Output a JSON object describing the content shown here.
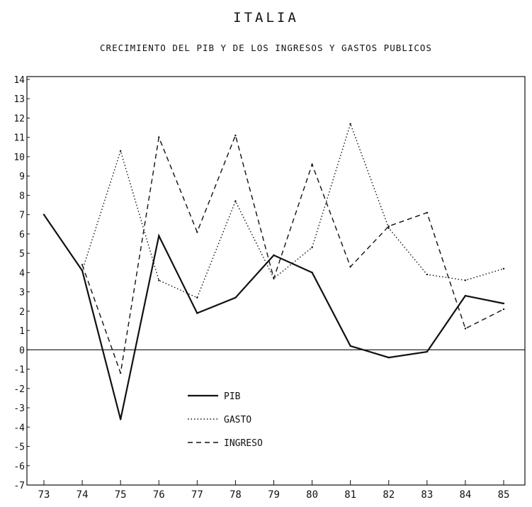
{
  "chart_data": {
    "type": "line",
    "title": "ITALIA",
    "subtitle": "CRECIMIENTO DEL PIB Y DE LOS INGRESOS Y GASTOS PUBLICOS",
    "xlabel": "",
    "ylabel": "",
    "categories": [
      "73",
      "74",
      "75",
      "76",
      "77",
      "78",
      "79",
      "80",
      "81",
      "82",
      "83",
      "84",
      "85"
    ],
    "ylim": [
      -7,
      14
    ],
    "yticks": [
      "-7",
      "-6",
      "-5",
      "-4",
      "-3",
      "-2",
      "-1",
      "0",
      "1",
      "2",
      "3",
      "4",
      "5",
      "6",
      "7",
      "8",
      "9",
      "10",
      "11",
      "12",
      "13",
      "14"
    ],
    "grid": false,
    "legend_position": "lower-left",
    "series": [
      {
        "name": "PIB",
        "style": "solid",
        "values": [
          7.0,
          4.1,
          -3.6,
          5.9,
          1.9,
          2.7,
          4.9,
          4.0,
          0.2,
          -0.4,
          -0.1,
          2.8,
          2.4
        ]
      },
      {
        "name": "GASTO",
        "style": "dotted",
        "values": [
          null,
          4.1,
          10.3,
          3.6,
          2.7,
          7.7,
          3.7,
          5.3,
          11.7,
          6.3,
          3.9,
          3.6,
          4.2
        ]
      },
      {
        "name": "INGRESO",
        "style": "dashed",
        "values": [
          null,
          4.4,
          -1.2,
          11.0,
          6.1,
          11.1,
          3.7,
          9.6,
          4.3,
          6.4,
          7.1,
          1.1,
          2.1
        ]
      }
    ]
  }
}
